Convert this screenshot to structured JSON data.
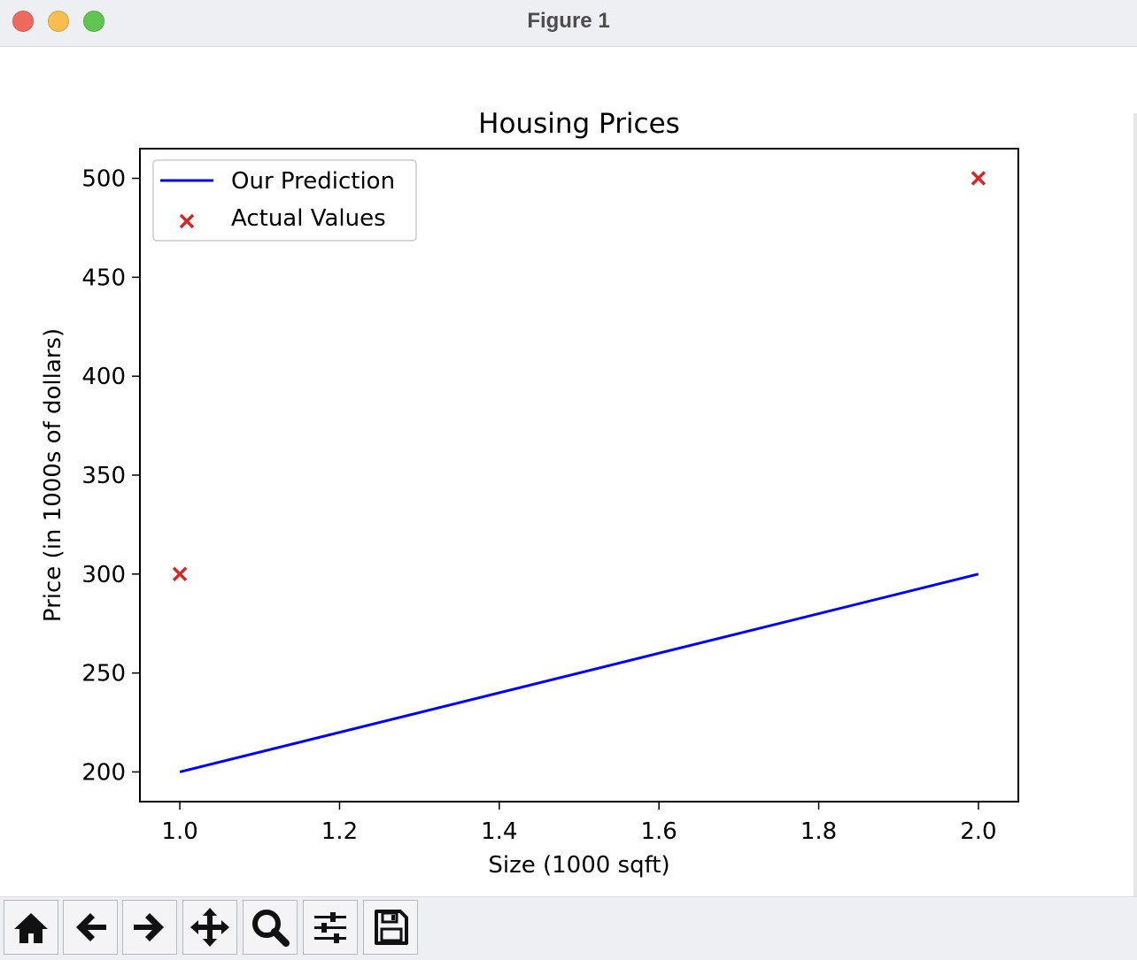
{
  "window": {
    "title": "Figure 1"
  },
  "toolbar": {
    "buttons": [
      {
        "icon": "home-icon"
      },
      {
        "icon": "back-arrow-icon"
      },
      {
        "icon": "forward-arrow-icon"
      },
      {
        "icon": "pan-icon"
      },
      {
        "icon": "zoom-icon"
      },
      {
        "icon": "configure-subplots-icon"
      },
      {
        "icon": "save-icon"
      }
    ]
  },
  "chart_data": {
    "type": "line",
    "title": "Housing Prices",
    "xlabel": "Size (1000 sqft)",
    "ylabel": "Price (in 1000s of dollars)",
    "xlim": [
      0.95,
      2.05
    ],
    "ylim": [
      185,
      515
    ],
    "xticks": [
      1.0,
      1.2,
      1.4,
      1.6,
      1.8,
      2.0
    ],
    "xtick_labels": [
      "1.0",
      "1.2",
      "1.4",
      "1.6",
      "1.8",
      "2.0"
    ],
    "yticks": [
      200,
      250,
      300,
      350,
      400,
      450,
      500
    ],
    "ytick_labels": [
      "200",
      "250",
      "300",
      "350",
      "400",
      "450",
      "500"
    ],
    "grid": false,
    "legend": {
      "placement": "upper-left"
    },
    "series": [
      {
        "name": "Our Prediction",
        "kind": "line",
        "color": "#0000ff",
        "x": [
          1.0,
          2.0
        ],
        "y": [
          200,
          300
        ]
      },
      {
        "name": "Actual Values",
        "kind": "scatter",
        "marker": "x",
        "color": "#d62728",
        "x": [
          1.0,
          2.0
        ],
        "y": [
          300,
          500
        ]
      }
    ]
  }
}
